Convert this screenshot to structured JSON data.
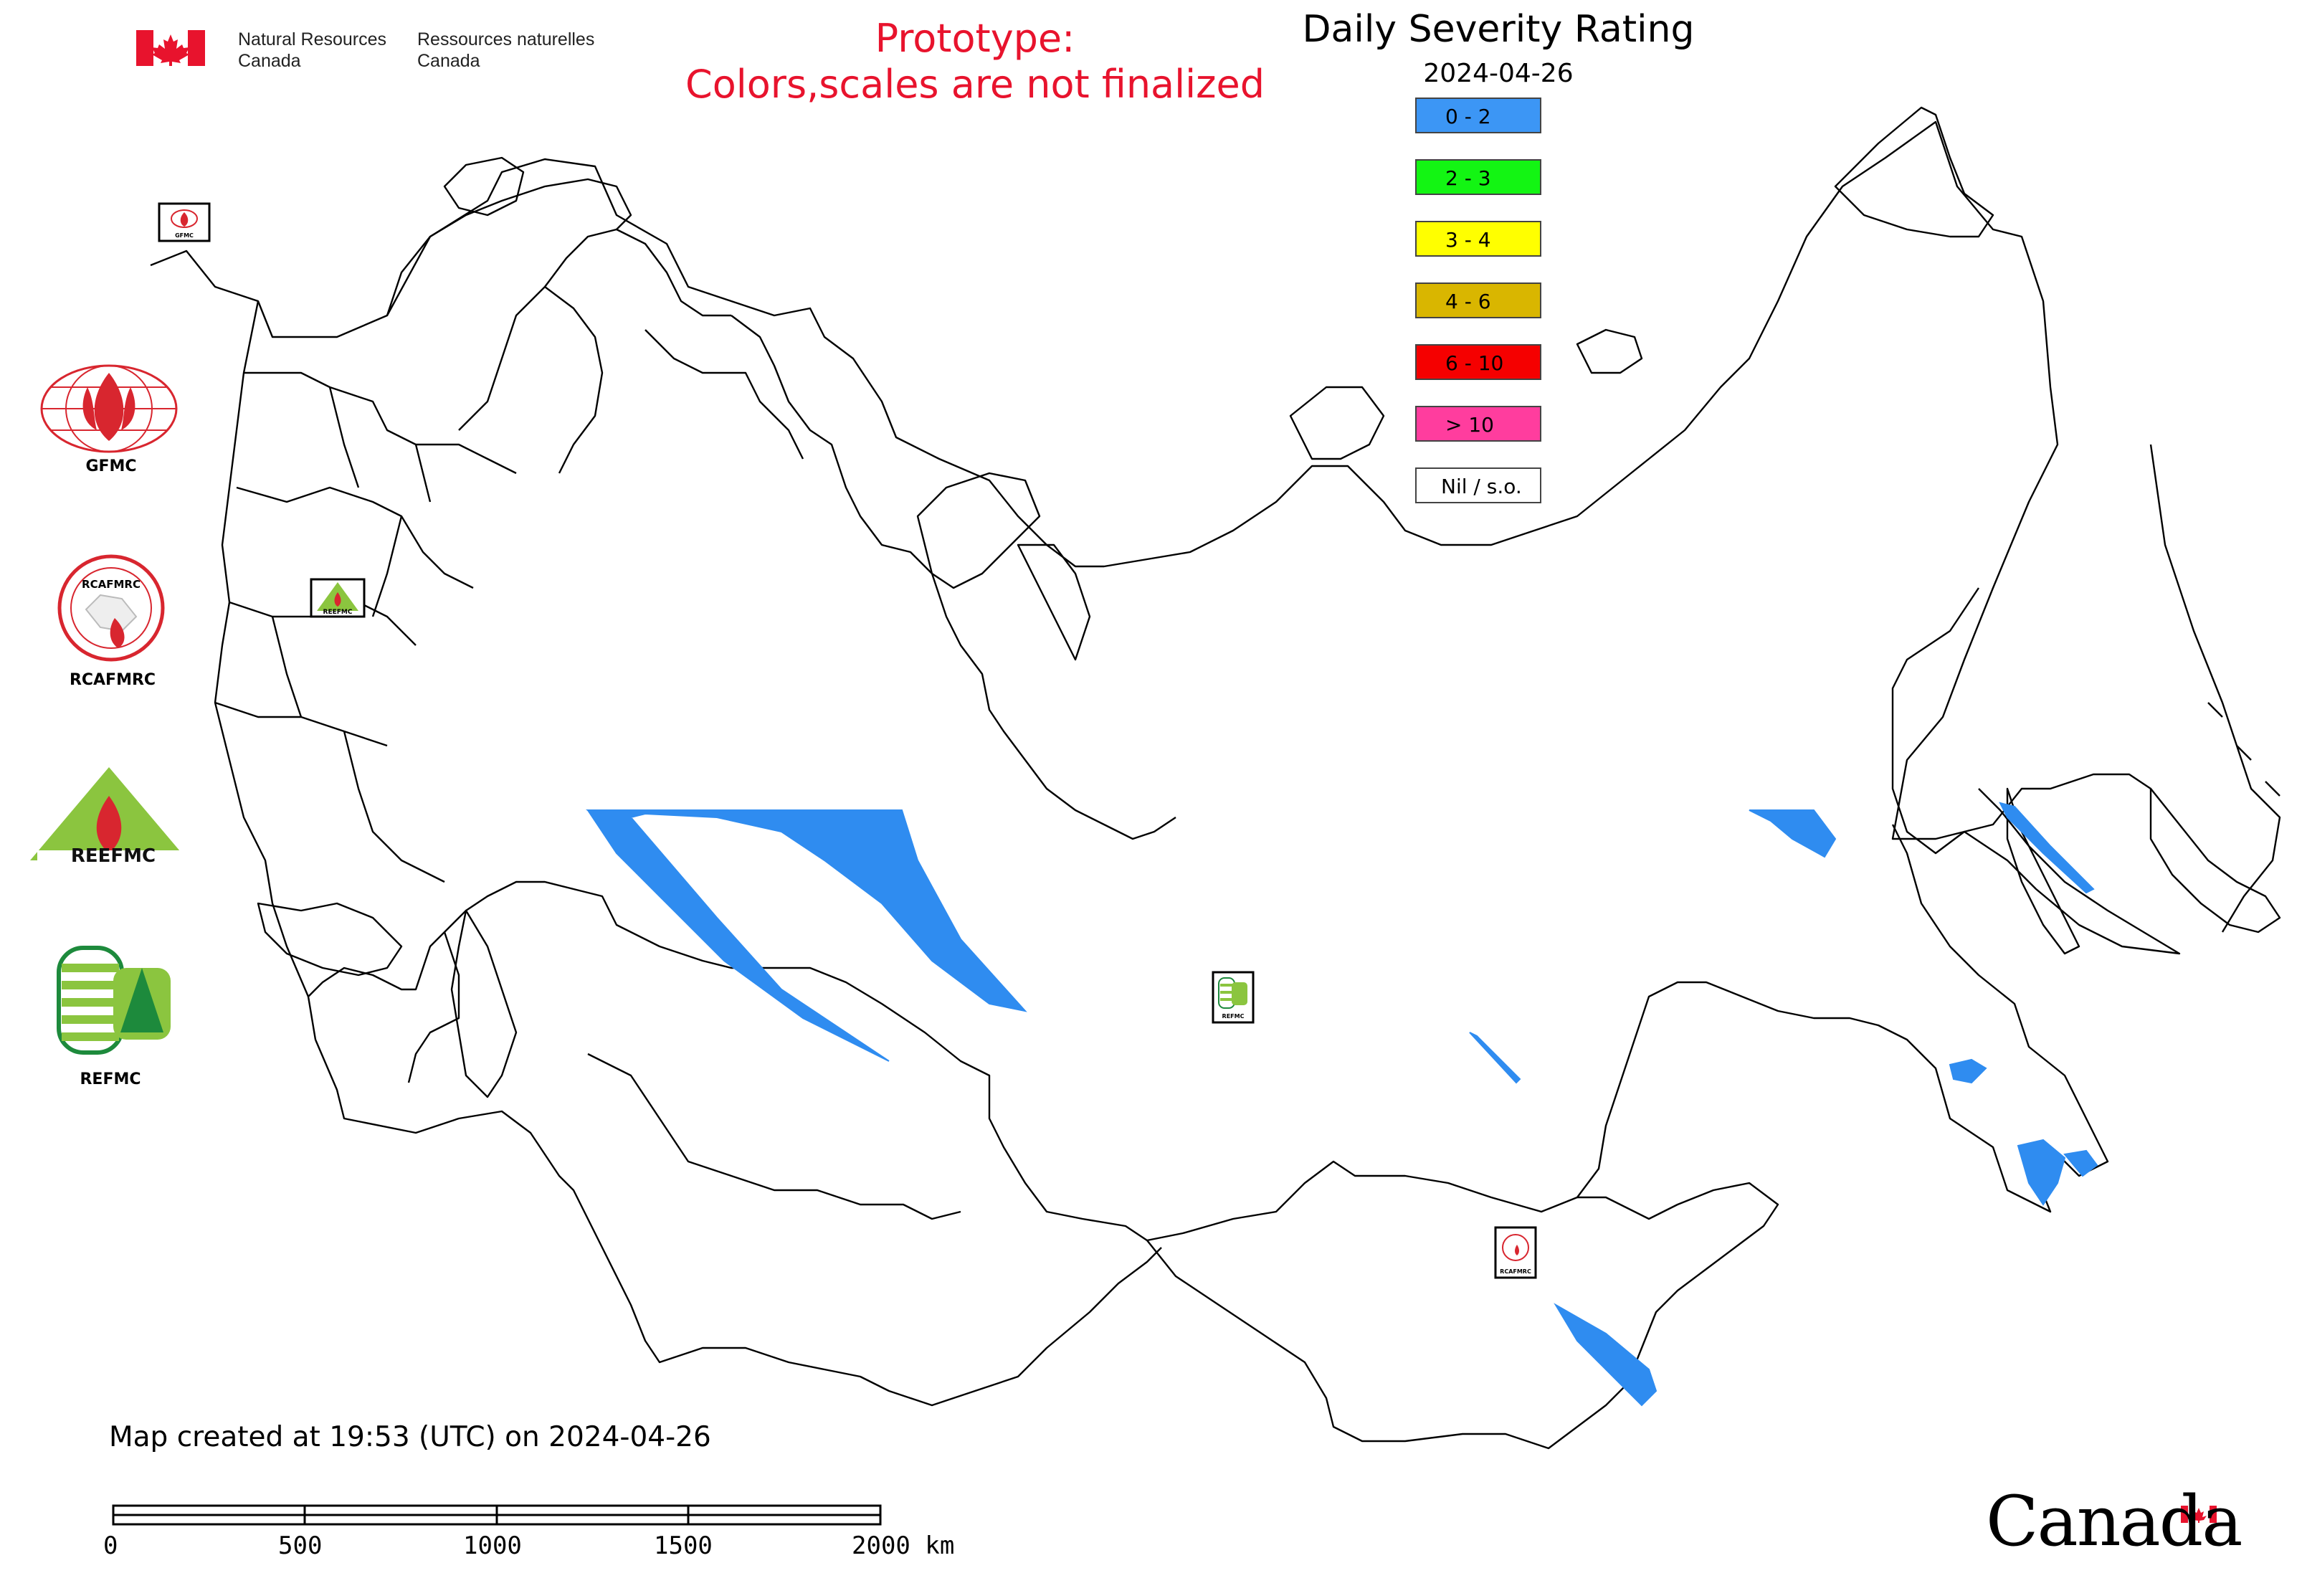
{
  "header": {
    "gov_en_line1": "Natural Resources",
    "gov_en_line2": "Canada",
    "gov_fr_line1": "Ressources naturelles",
    "gov_fr_line2": "Canada",
    "prototype_line1": "Prototype:",
    "prototype_line2": "Colors,scales are not finalized",
    "title": "Daily Severity Rating",
    "date": "2024-04-26"
  },
  "legend": [
    {
      "label": "0 - 2",
      "color": "#3c96f5"
    },
    {
      "label": "2 - 3",
      "color": "#13f513"
    },
    {
      "label": "3 - 4",
      "color": "#ffff00"
    },
    {
      "label": "4 - 6",
      "color": "#d9b600"
    },
    {
      "label": "6 - 10",
      "color": "#f50000"
    },
    {
      "label": "> 10",
      "color": "#ff3d9e"
    },
    {
      "label": "Nil / s.o.",
      "color": "#ffffff"
    }
  ],
  "logos": {
    "gfmc": "GFMC",
    "rcafmrc": "RCAFMRC",
    "reefmc_text": "REEFMC",
    "refmc": "REFMC",
    "small_gfmc": "GFMC",
    "small_rcafmrc": "RCAFMRC",
    "small_reefmc": "REEFMC",
    "small_refmc": "REFMC",
    "rcafmrc_ring": "RCAFMRC"
  },
  "footer": {
    "created": "Map created at 19:53 (UTC) on 2024-04-26",
    "scale_labels": [
      "0",
      "500",
      "1000",
      "1500",
      "2000 km"
    ],
    "wordmark": "Canada"
  },
  "colors": {
    "accent_red": "#e8132d",
    "severity_low": "#2f8cf0"
  }
}
